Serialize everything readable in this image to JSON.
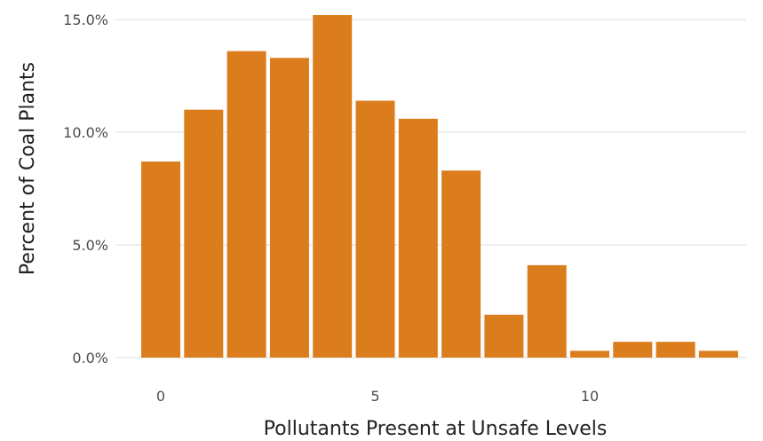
{
  "chart_data": {
    "type": "bar",
    "xlabel": "Pollutants Present at Unsafe Levels",
    "ylabel": "Percent of Coal Plants",
    "x": [
      0,
      1,
      2,
      3,
      4,
      5,
      6,
      7,
      8,
      9,
      10,
      11,
      12,
      13
    ],
    "values": [
      8.7,
      11.0,
      13.6,
      13.3,
      15.2,
      11.4,
      10.6,
      8.3,
      1.9,
      4.1,
      0.3,
      0.7,
      0.7,
      0.3
    ],
    "x_ticks": [
      0,
      5,
      10
    ],
    "x_tick_labels": [
      "0",
      "5",
      "10"
    ],
    "y_ticks": [
      0,
      5,
      10,
      15
    ],
    "y_tick_labels": [
      "0.0%",
      "5.0%",
      "10.0%",
      "15.0%"
    ],
    "ylim": [
      0,
      15.2
    ],
    "grid": "horizontal major lines",
    "bar_color": "#db7c1d",
    "legend": "none"
  }
}
